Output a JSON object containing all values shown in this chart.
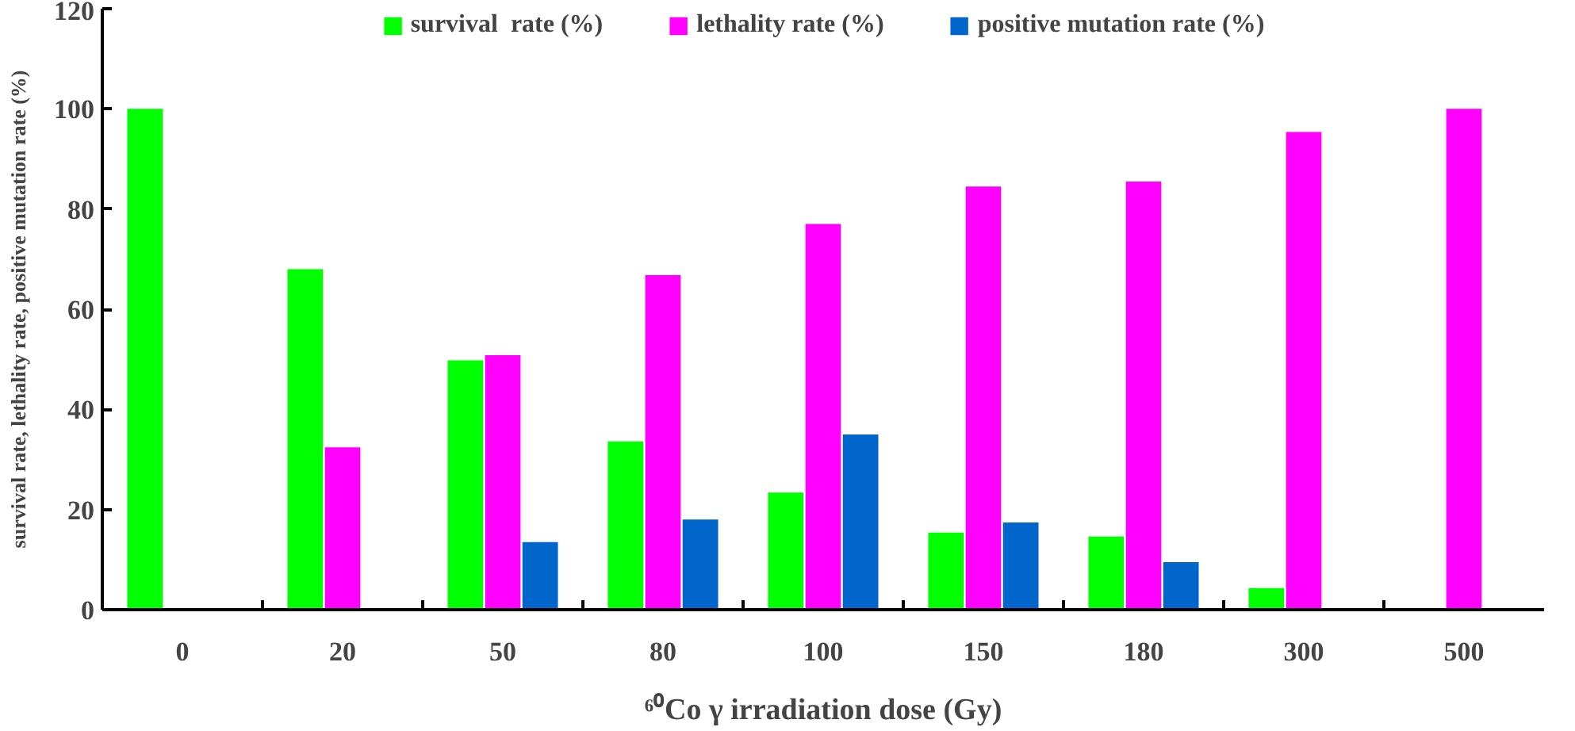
{
  "chart_data": {
    "type": "bar",
    "xlabel": "⁶⁰Co γ irradiation dose (Gy)",
    "ylabel": "survival rate, lethality rate, positive mutation rate (%)",
    "categories": [
      "0",
      "20",
      "50",
      "80",
      "100",
      "150",
      "180",
      "300",
      "500"
    ],
    "series": [
      {
        "name": "survival  rate (%)",
        "color": "#00ff00",
        "values": [
          100,
          68,
          49.8,
          33.6,
          23.4,
          15.4,
          14.6,
          4.3,
          null
        ]
      },
      {
        "name": "lethality rate (%)",
        "color": "#ff00ff",
        "values": [
          null,
          32.4,
          50.8,
          66.8,
          77,
          84.5,
          85.5,
          95.4,
          100
        ]
      },
      {
        "name": "positive mutation rate (%)",
        "color": "#0066cc",
        "values": [
          null,
          null,
          13.5,
          18,
          35,
          17.4,
          9.5,
          null,
          null
        ]
      }
    ],
    "ylim": [
      0,
      120
    ],
    "yticks": [
      0,
      20,
      40,
      60,
      80,
      100,
      120
    ],
    "grid": false,
    "legend": "top"
  }
}
